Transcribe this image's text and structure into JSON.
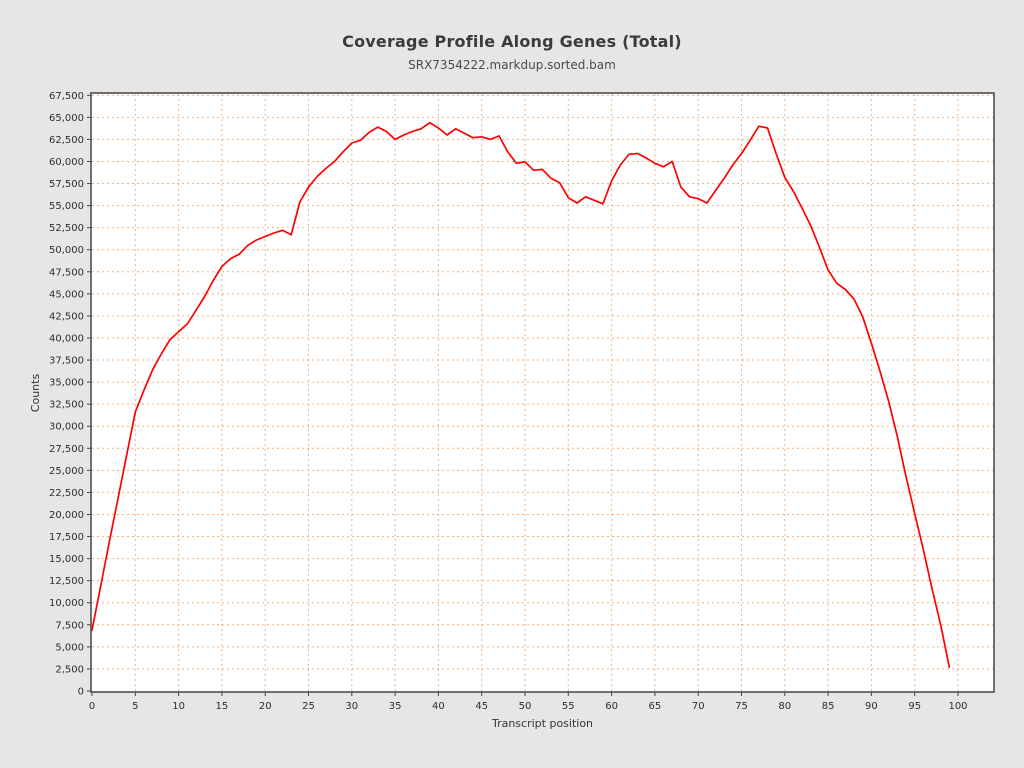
{
  "page": {
    "background_color": "#e6e6e6",
    "plot_background_color": "#ffffff"
  },
  "chart_data": {
    "type": "line",
    "title": "Coverage Profile Along Genes (Total)",
    "subtitle": "SRX7354222.markdup.sorted.bam",
    "xlabel": "Transcript position",
    "ylabel": "Counts",
    "xlim": [
      0,
      104
    ],
    "ylim": [
      0,
      67500
    ],
    "grid": true,
    "grid_style": "dashed",
    "grid_color": "#f2b27e",
    "line_color": "#fe0101",
    "axis_border_color": "#4f4f4f",
    "legend": "none",
    "x_tick_values": [
      0,
      5,
      10,
      15,
      20,
      25,
      30,
      35,
      40,
      45,
      50,
      55,
      60,
      65,
      70,
      75,
      80,
      85,
      90,
      95,
      100
    ],
    "x_tick_labels": [
      "0",
      "5",
      "10",
      "15",
      "20",
      "25",
      "30",
      "35",
      "40",
      "45",
      "50",
      "55",
      "60",
      "65",
      "70",
      "75",
      "80",
      "85",
      "90",
      "95",
      "100"
    ],
    "y_tick_values": [
      0,
      2500,
      5000,
      7500,
      10000,
      12500,
      15000,
      17500,
      20000,
      22500,
      25000,
      27500,
      30000,
      32500,
      35000,
      37500,
      40000,
      42500,
      45000,
      47500,
      50000,
      52500,
      55000,
      57500,
      60000,
      62500,
      65000,
      67500
    ],
    "y_tick_labels": [
      "0",
      "2,500",
      "5,000",
      "7,500",
      "10,000",
      "12,500",
      "15,000",
      "17,500",
      "20,000",
      "22,500",
      "25,000",
      "27,500",
      "30,000",
      "32,500",
      "35,000",
      "37,500",
      "40,000",
      "42,500",
      "45,000",
      "47,500",
      "50,000",
      "52,500",
      "55,000",
      "57,500",
      "60,000",
      "62,500",
      "65,000",
      "67,500"
    ],
    "series": [
      {
        "name": "SRX7354222.markdup.sorted.bam",
        "x": [
          0,
          1,
          2,
          3,
          4,
          5,
          6,
          7,
          8,
          9,
          10,
          11,
          12,
          13,
          14,
          15,
          16,
          17,
          18,
          19,
          20,
          21,
          22,
          23,
          24,
          25,
          26,
          27,
          28,
          29,
          30,
          31,
          32,
          33,
          34,
          35,
          36,
          37,
          38,
          39,
          40,
          41,
          42,
          43,
          44,
          45,
          46,
          47,
          48,
          49,
          50,
          51,
          52,
          53,
          54,
          55,
          56,
          57,
          58,
          59,
          60,
          61,
          62,
          63,
          64,
          65,
          66,
          67,
          68,
          69,
          70,
          71,
          72,
          73,
          74,
          75,
          76,
          77,
          78,
          79,
          80,
          81,
          82,
          83,
          84,
          85,
          86,
          87,
          88,
          89,
          90,
          91,
          92,
          93,
          94,
          95,
          96,
          97,
          98,
          99
        ],
        "values": [
          6900,
          11900,
          16900,
          21800,
          26700,
          31600,
          34100,
          36400,
          38200,
          39800,
          40700,
          41600,
          43100,
          44700,
          46500,
          48100,
          49000,
          49500,
          50500,
          51100,
          51500,
          51900,
          52200,
          51700,
          55400,
          57100,
          58300,
          59200,
          60000,
          61100,
          62100,
          62400,
          63300,
          63900,
          63400,
          62500,
          63000,
          63400,
          63700,
          64400,
          63800,
          63000,
          63700,
          63200,
          62700,
          62800,
          62500,
          62900,
          61100,
          59800,
          59950,
          59000,
          59100,
          58100,
          57600,
          55900,
          55300,
          56000,
          55600,
          55200,
          57800,
          59600,
          60800,
          60900,
          60400,
          59800,
          59400,
          60000,
          57100,
          56000,
          55800,
          55300,
          56700,
          58100,
          59600,
          60900,
          62400,
          64000,
          63800,
          60900,
          58200,
          56600,
          54700,
          52700,
          50300,
          47700,
          46200,
          45500,
          44400,
          42400,
          39400,
          36200,
          32800,
          28800,
          24300,
          20100,
          16000,
          11600,
          7500,
          2700
        ]
      }
    ]
  }
}
